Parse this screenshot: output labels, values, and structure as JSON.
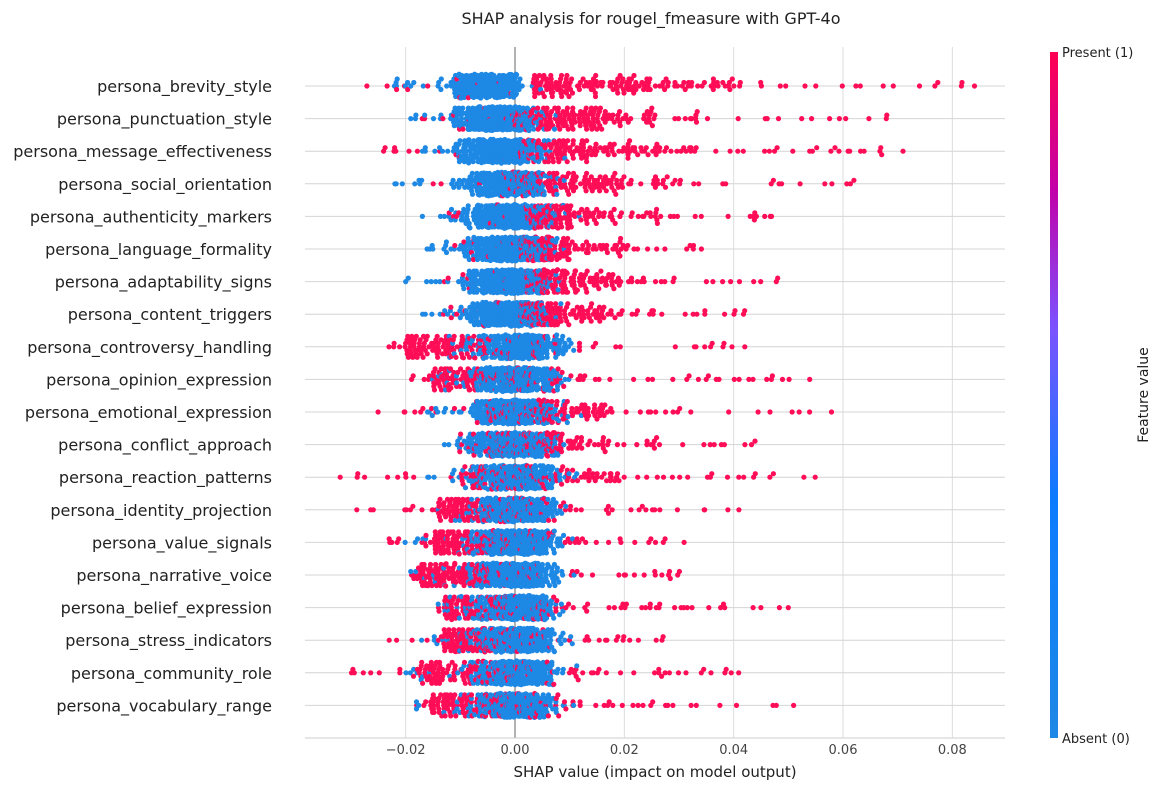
{
  "chart_data": {
    "type": "scatter",
    "subtype": "shap-beeswarm",
    "title": "SHAP analysis for rougel_fmeasure with GPT-4o",
    "xlabel": "SHAP value (impact on model output)",
    "ylabel": "",
    "xlim": [
      -0.038,
      0.09
    ],
    "x_ticks": [
      -0.02,
      0.0,
      0.02,
      0.04,
      0.06,
      0.08
    ],
    "x_tick_labels": [
      "−0.02",
      "0.00",
      "0.02",
      "0.04",
      "0.06",
      "0.08"
    ],
    "grid": "vertical",
    "colorbar": {
      "label": "Feature value",
      "high_label": "Present (1)",
      "low_label": "Absent (0)",
      "colors": [
        "#1e88e5",
        "#7c52ff",
        "#ff0052"
      ]
    },
    "colors": {
      "present": "#ff0d57",
      "absent": "#1e88e5"
    },
    "features": [
      "persona_brevity_style",
      "persona_punctuation_style",
      "persona_message_effectiveness",
      "persona_social_orientation",
      "persona_authenticity_markers",
      "persona_language_formality",
      "persona_adaptability_signs",
      "persona_content_triggers",
      "persona_controversy_handling",
      "persona_opinion_expression",
      "persona_emotional_expression",
      "persona_conflict_approach",
      "persona_reaction_patterns",
      "persona_identity_projection",
      "persona_value_signals",
      "persona_narrative_voice",
      "persona_belief_expression",
      "persona_stress_indicators",
      "persona_community_role",
      "persona_vocabulary_range"
    ],
    "distributions": [
      {
        "blue_center": -0.005,
        "blue_spread": 0.005,
        "blue_min": -0.022,
        "red_min": -0.027,
        "red_max": 0.084,
        "red_start": 0.003,
        "red_density": 1.0
      },
      {
        "blue_center": -0.003,
        "blue_spread": 0.005,
        "blue_min": -0.019,
        "red_min": -0.017,
        "red_max": 0.068,
        "red_start": 0.0,
        "red_density": 1.0
      },
      {
        "blue_center": -0.002,
        "blue_spread": 0.005,
        "blue_min": -0.017,
        "red_min": -0.024,
        "red_max": 0.071,
        "red_start": 0.0,
        "red_density": 0.9
      },
      {
        "blue_center": -0.001,
        "blue_spread": 0.005,
        "blue_min": -0.022,
        "red_min": -0.015,
        "red_max": 0.062,
        "red_start": 0.0,
        "red_density": 0.9
      },
      {
        "blue_center": -0.001,
        "blue_spread": 0.005,
        "blue_min": -0.017,
        "red_min": -0.012,
        "red_max": 0.047,
        "red_start": 0.002,
        "red_density": 0.9
      },
      {
        "blue_center": -0.001,
        "blue_spread": 0.005,
        "blue_min": -0.016,
        "red_min": -0.011,
        "red_max": 0.034,
        "red_start": 0.001,
        "red_density": 0.85
      },
      {
        "blue_center": -0.001,
        "blue_spread": 0.005,
        "blue_min": -0.02,
        "red_min": -0.013,
        "red_max": 0.048,
        "red_start": 0.002,
        "red_density": 0.9
      },
      {
        "blue_center": -0.001,
        "blue_spread": 0.005,
        "blue_min": -0.017,
        "red_min": -0.013,
        "red_max": 0.042,
        "red_start": 0.001,
        "red_density": 0.85
      },
      {
        "blue_center": 0.001,
        "blue_spread": 0.005,
        "blue_min": -0.012,
        "red_min": -0.023,
        "red_max": 0.042,
        "red_start": -0.02,
        "red_density": 0.9
      },
      {
        "blue_center": 0.0,
        "blue_spread": 0.005,
        "blue_min": -0.015,
        "red_min": -0.019,
        "red_max": 0.054,
        "red_start": -0.015,
        "red_density": 0.85
      },
      {
        "blue_center": 0.0,
        "blue_spread": 0.005,
        "blue_min": -0.016,
        "red_min": -0.025,
        "red_max": 0.058,
        "red_start": -0.005,
        "red_density": 0.85
      },
      {
        "blue_center": 0.0,
        "blue_spread": 0.005,
        "blue_min": -0.013,
        "red_min": -0.01,
        "red_max": 0.044,
        "red_start": -0.005,
        "red_density": 0.85
      },
      {
        "blue_center": 0.0,
        "blue_spread": 0.005,
        "blue_min": -0.016,
        "red_min": -0.032,
        "red_max": 0.055,
        "red_start": -0.01,
        "red_density": 0.85
      },
      {
        "blue_center": 0.0,
        "blue_spread": 0.005,
        "blue_min": -0.014,
        "red_min": -0.029,
        "red_max": 0.041,
        "red_start": -0.014,
        "red_density": 0.85
      },
      {
        "blue_center": 0.0,
        "blue_spread": 0.005,
        "blue_min": -0.02,
        "red_min": -0.023,
        "red_max": 0.031,
        "red_start": -0.015,
        "red_density": 0.85
      },
      {
        "blue_center": 0.0,
        "blue_spread": 0.005,
        "blue_min": -0.019,
        "red_min": -0.019,
        "red_max": 0.03,
        "red_start": -0.018,
        "red_density": 0.85
      },
      {
        "blue_center": 0.0,
        "blue_spread": 0.005,
        "blue_min": -0.014,
        "red_min": -0.014,
        "red_max": 0.05,
        "red_start": -0.013,
        "red_density": 0.85
      },
      {
        "blue_center": 0.0,
        "blue_spread": 0.005,
        "blue_min": -0.017,
        "red_min": -0.023,
        "red_max": 0.027,
        "red_start": -0.013,
        "red_density": 0.85
      },
      {
        "blue_center": 0.0,
        "blue_spread": 0.005,
        "blue_min": -0.02,
        "red_min": -0.03,
        "red_max": 0.041,
        "red_start": -0.018,
        "red_density": 0.85
      },
      {
        "blue_center": 0.0,
        "blue_spread": 0.005,
        "blue_min": -0.018,
        "red_min": -0.018,
        "red_max": 0.051,
        "red_start": -0.016,
        "red_density": 0.85
      }
    ]
  }
}
